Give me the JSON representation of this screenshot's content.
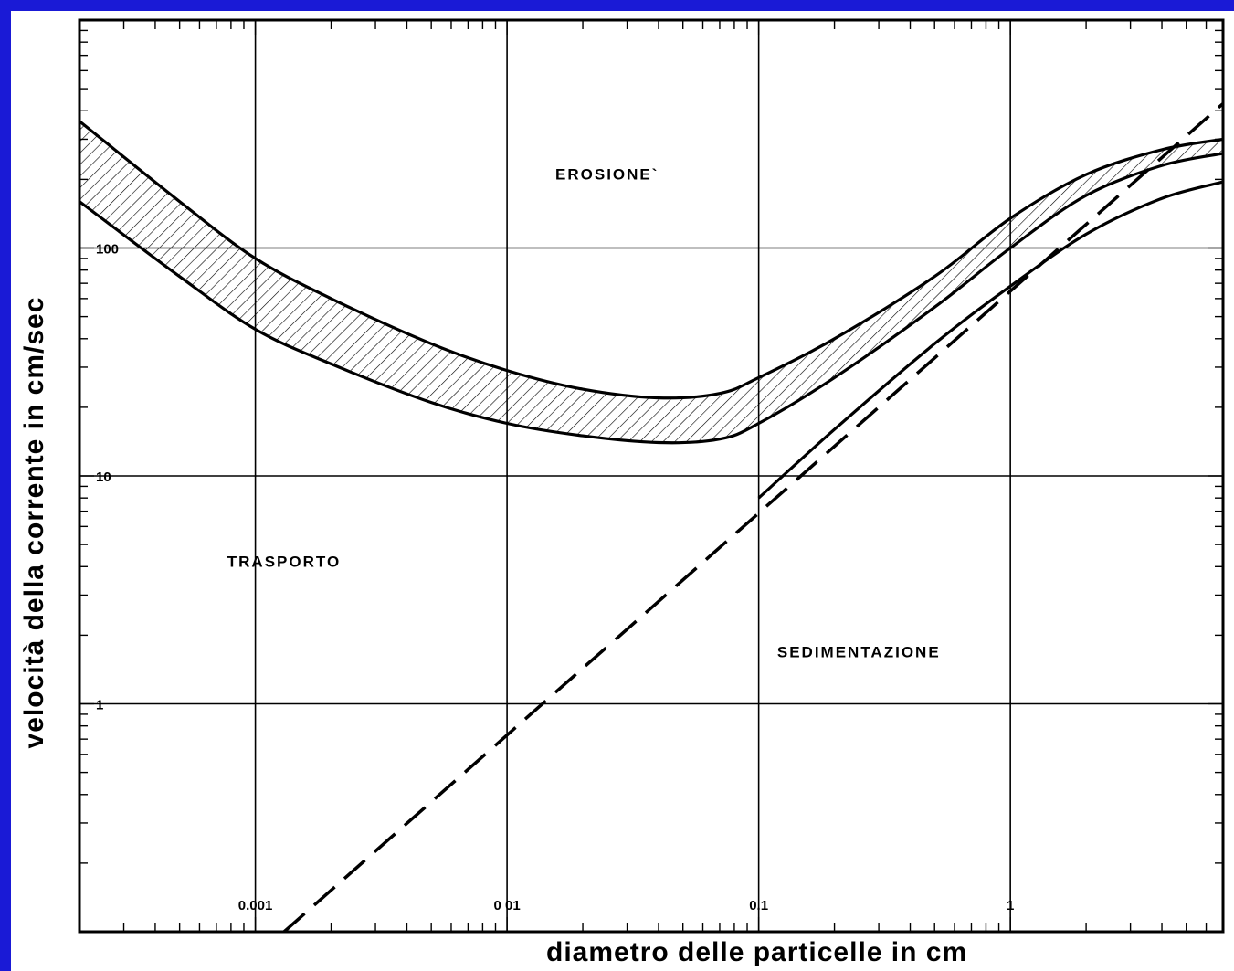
{
  "chart_data": {
    "type": "line",
    "xlabel": "diametro  delle  particelle  in  cm",
    "ylabel": "velocità  della  corrente  in  cm/sec",
    "xscale": "log",
    "yscale": "log",
    "xlim": [
      0.0002,
      7
    ],
    "ylim": [
      0.1,
      1000
    ],
    "x_tick_labels": [
      {
        "value": 0.001,
        "label": "0.001"
      },
      {
        "value": 0.01,
        "label": "0 01"
      },
      {
        "value": 0.1,
        "label": "0.1"
      },
      {
        "value": 1,
        "label": "1"
      }
    ],
    "y_tick_labels": [
      {
        "value": 100,
        "label": "100"
      },
      {
        "value": 10,
        "label": "10"
      },
      {
        "value": 1,
        "label": "1"
      }
    ],
    "grid": true,
    "region_labels": [
      {
        "text": "EROSIONE`",
        "x": 0.025,
        "y": 200
      },
      {
        "text": "TRASPORTO",
        "x": 0.0013,
        "y": 4
      },
      {
        "text": "SEDIMENTAZIONE",
        "x": 0.25,
        "y": 1.6
      }
    ],
    "series": [
      {
        "style": "solid",
        "x": [
          0.0002,
          0.0005,
          0.001,
          0.002,
          0.005,
          0.01,
          0.02,
          0.04,
          0.07,
          0.1,
          0.2,
          0.5,
          1,
          2,
          4,
          7
        ],
        "y": [
          360,
          160,
          90,
          60,
          38,
          29,
          24,
          22,
          23,
          27,
          40,
          75,
          135,
          210,
          270,
          300
        ]
      },
      {
        "style": "solid",
        "x": [
          0.0002,
          0.0005,
          0.001,
          0.002,
          0.005,
          0.01,
          0.02,
          0.04,
          0.07,
          0.1,
          0.2,
          0.5,
          1,
          2,
          4,
          7
        ],
        "y": [
          160,
          75,
          44,
          31,
          21,
          17,
          15,
          14,
          14.5,
          17,
          27,
          55,
          100,
          170,
          230,
          260
        ]
      },
      {
        "style": "solid",
        "x": [
          0.1,
          0.2,
          0.5,
          1,
          2,
          4,
          7
        ],
        "y": [
          8,
          16,
          38,
          68,
          115,
          165,
          195
        ]
      },
      {
        "style": "dashed",
        "x": [
          0.0013,
          7
        ],
        "y": [
          0.1,
          430
        ]
      }
    ]
  }
}
